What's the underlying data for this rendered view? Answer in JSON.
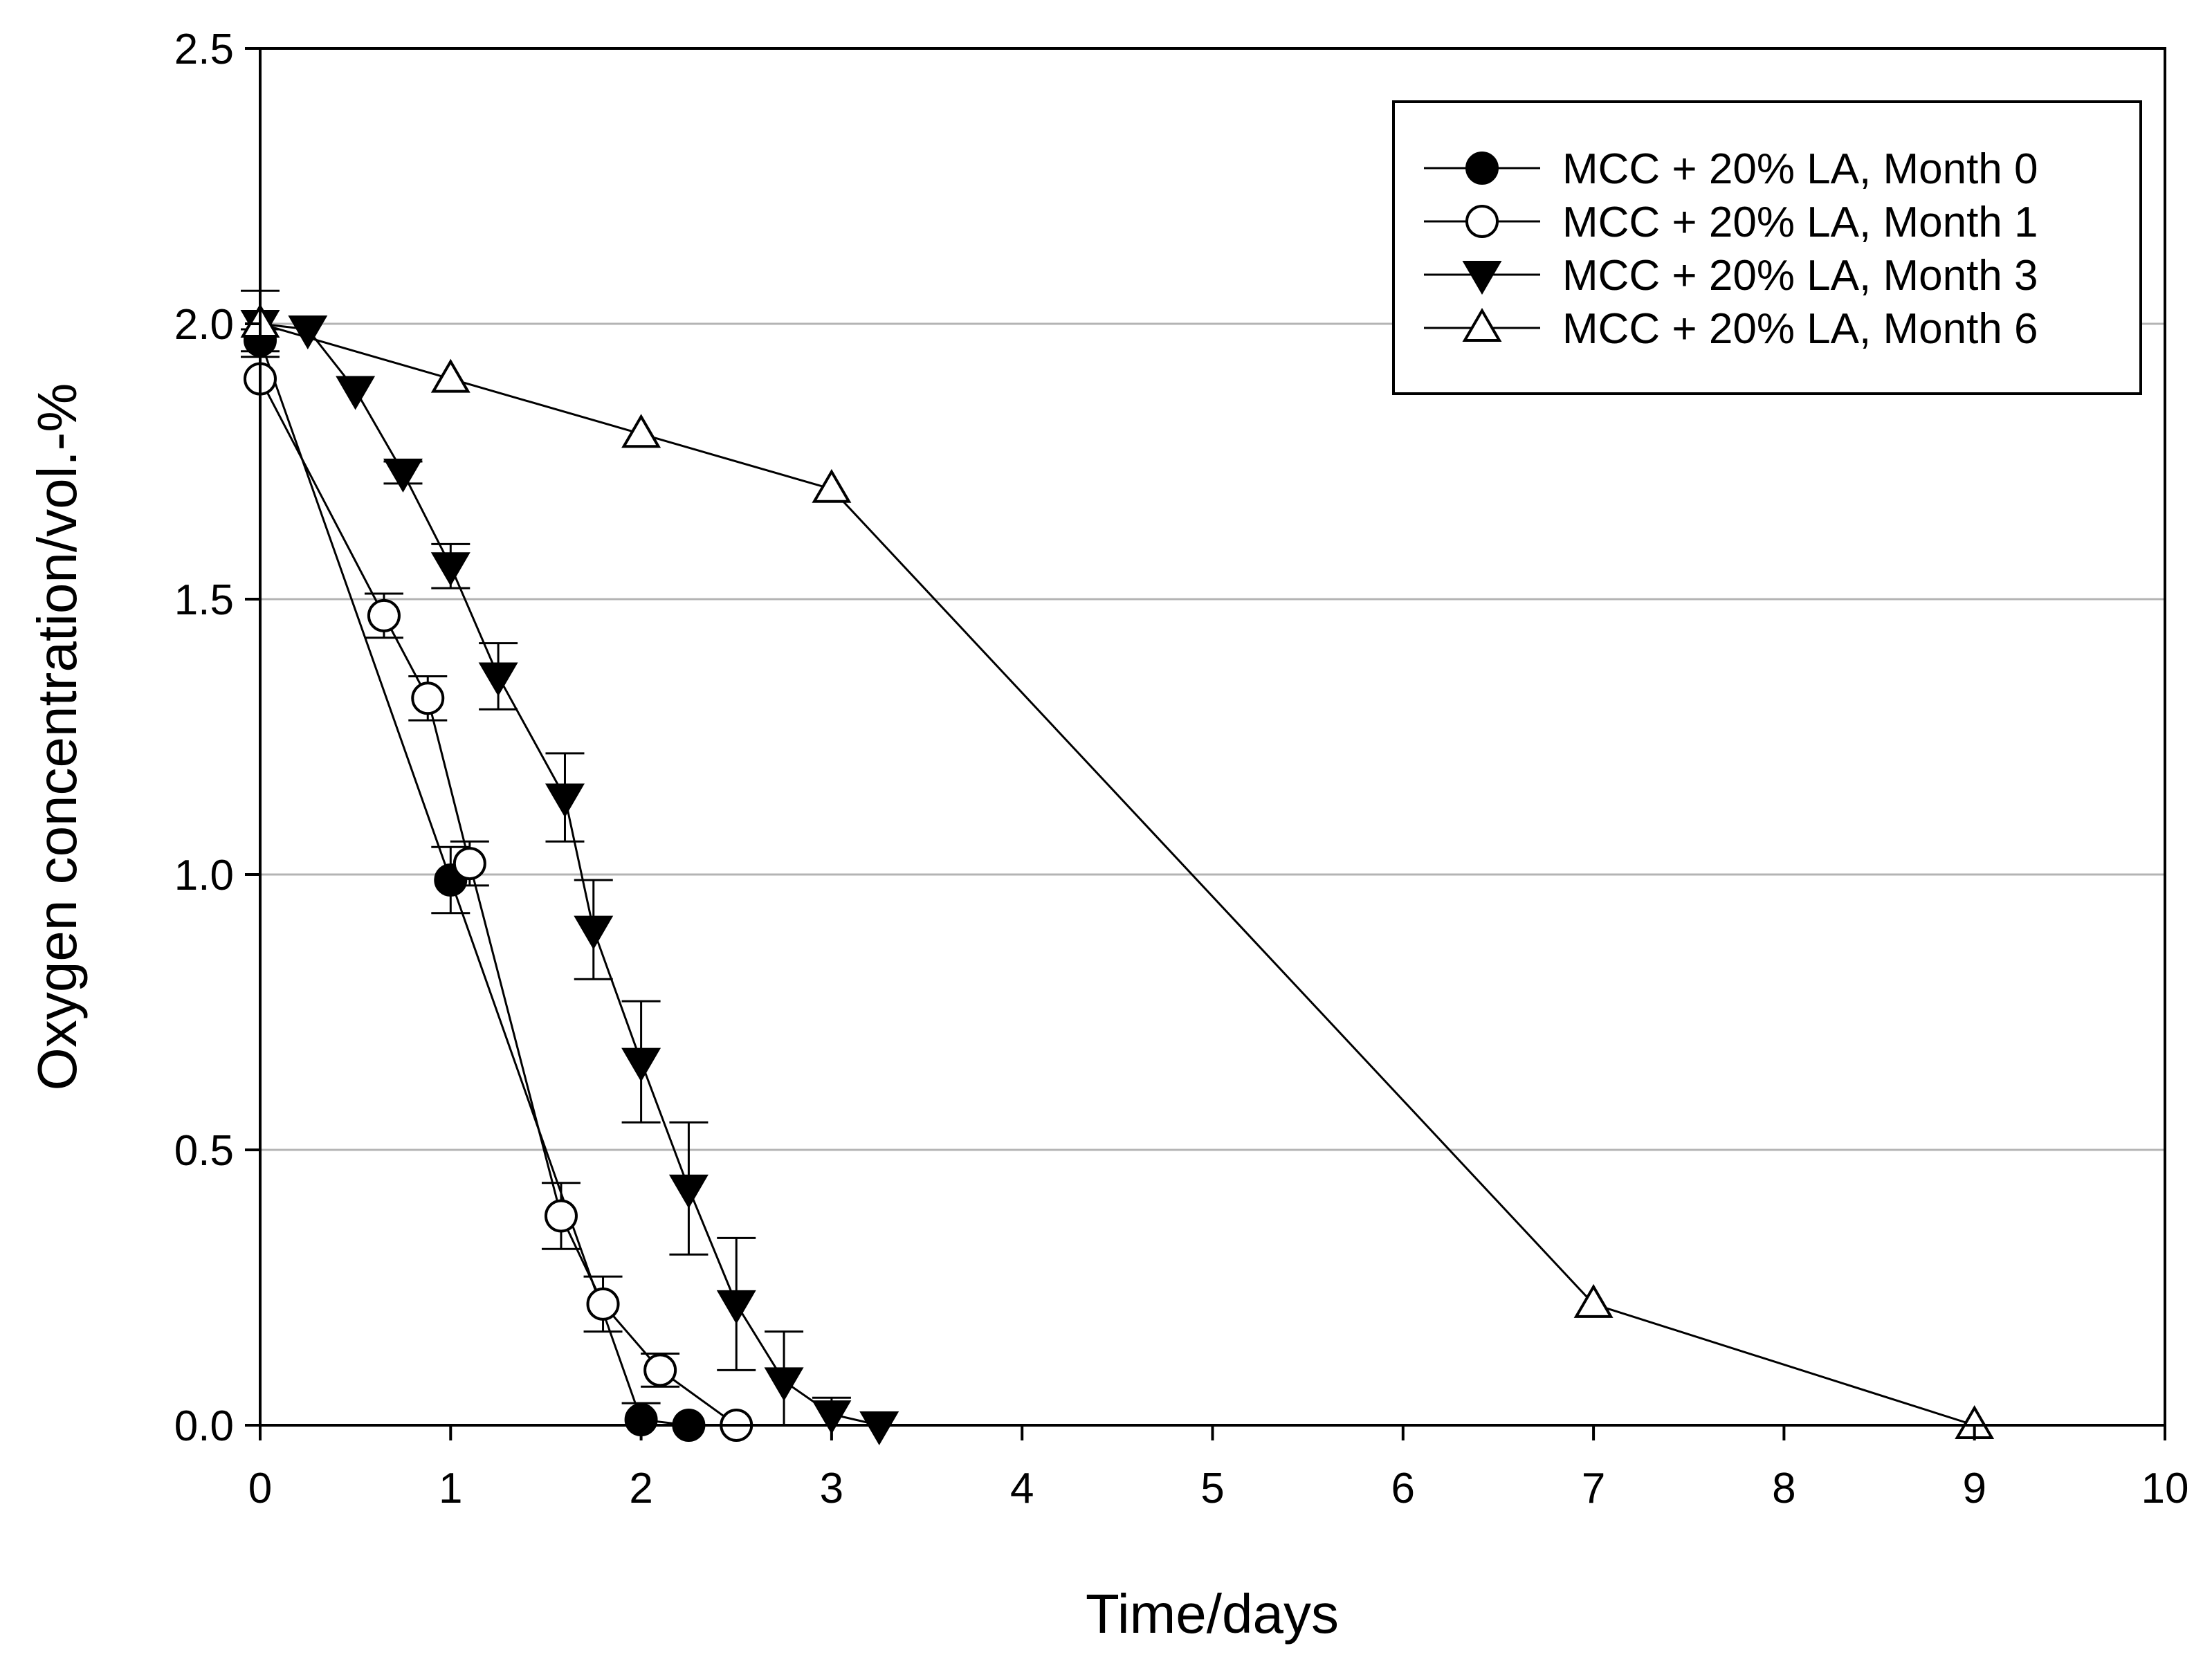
{
  "chart_data": {
    "type": "line",
    "title": "",
    "xlabel": "Time/days",
    "ylabel": "Oxygen concentration/vol.-%",
    "xlim": [
      0,
      10
    ],
    "ylim": [
      0,
      2.5
    ],
    "xticks": [
      0,
      1,
      2,
      3,
      4,
      5,
      6,
      7,
      8,
      9,
      10
    ],
    "yticks": [
      0.0,
      0.5,
      1.0,
      1.5,
      2.0,
      2.5
    ],
    "xtick_labels": [
      "0",
      "1",
      "2",
      "3",
      "4",
      "5",
      "6",
      "7",
      "8",
      "9",
      "10"
    ],
    "ytick_labels": [
      "0.0",
      "0.5",
      "1.0",
      "1.5",
      "2.0",
      "2.5"
    ],
    "grid": "horizontal",
    "legend_position": "top-right",
    "series": [
      {
        "name": "MCC + 20% LA, Month 0",
        "marker": "circle",
        "filled": true,
        "x": [
          0,
          1,
          2,
          2.25
        ],
        "y": [
          1.97,
          0.99,
          0.01,
          0.0
        ],
        "err": [
          0.02,
          0.06,
          0.03,
          0.0
        ]
      },
      {
        "name": "MCC + 20% LA, Month 1",
        "marker": "circle",
        "filled": false,
        "x": [
          0,
          0.65,
          0.88,
          1.1,
          1.58,
          1.8,
          2.1,
          2.5
        ],
        "y": [
          1.9,
          1.47,
          1.32,
          1.02,
          0.38,
          0.22,
          0.1,
          0.0
        ],
        "err": [
          0.0,
          0.04,
          0.04,
          0.04,
          0.06,
          0.05,
          0.03,
          0.0
        ]
      },
      {
        "name": "MCC + 20% LA, Month 3",
        "marker": "triangle-down",
        "filled": true,
        "x": [
          0,
          0.25,
          0.5,
          0.75,
          1.0,
          1.25,
          1.6,
          1.75,
          2.0,
          2.25,
          2.5,
          2.75,
          3.0,
          3.25
        ],
        "y": [
          2.0,
          1.99,
          1.88,
          1.73,
          1.56,
          1.36,
          1.14,
          0.9,
          0.66,
          0.43,
          0.22,
          0.08,
          0.02,
          0.0
        ],
        "err": [
          0.0,
          0.0,
          0.0,
          0.02,
          0.04,
          0.06,
          0.08,
          0.09,
          0.11,
          0.12,
          0.12,
          0.09,
          0.03,
          0.0
        ]
      },
      {
        "name": "MCC + 20% LA, Month 6",
        "marker": "triangle-up",
        "filled": false,
        "x": [
          0,
          1,
          2,
          3,
          7,
          9
        ],
        "y": [
          2.0,
          1.9,
          1.8,
          1.7,
          0.22,
          0.0
        ],
        "err": [
          0.06,
          0.0,
          0.0,
          0.0,
          0.0,
          0.0
        ]
      }
    ]
  }
}
